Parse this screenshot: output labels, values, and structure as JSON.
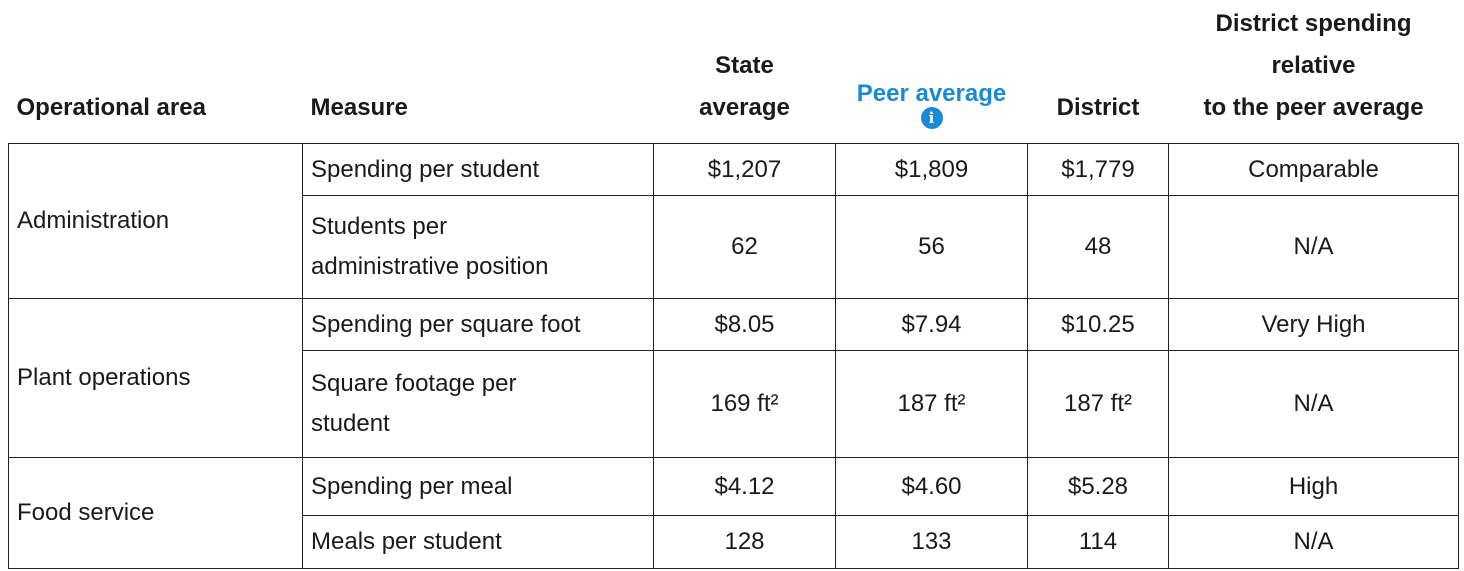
{
  "table": {
    "headers": [
      [
        "Operational area"
      ],
      [
        "Measure"
      ],
      [
        "State",
        "average"
      ],
      [
        "Peer average"
      ],
      [
        "District"
      ],
      [
        "District spending",
        "relative",
        "to the peer average"
      ]
    ],
    "groups": [
      {
        "area": "Administration",
        "rows": [
          [
            [
              "Spending per student"
            ],
            "$1,207",
            "$1,809",
            "$1,779",
            "Comparable"
          ],
          [
            [
              "Students per",
              "administrative position"
            ],
            "62",
            "56",
            "48",
            "N/A"
          ]
        ]
      },
      {
        "area": "Plant operations",
        "rows": [
          [
            [
              "Spending per square foot"
            ],
            "$8.05",
            "$7.94",
            "$10.25",
            "Very High"
          ],
          [
            [
              "Square footage per",
              "student"
            ],
            "169 ft²",
            "187 ft²",
            "187 ft²",
            "N/A"
          ]
        ]
      },
      {
        "area": "Food service",
        "rows": [
          [
            [
              "Spending per meal"
            ],
            "$4.12",
            "$4.60",
            "$5.28",
            "High"
          ],
          [
            [
              "Meals per student"
            ],
            "128",
            "133",
            "114",
            "N/A"
          ]
        ]
      }
    ]
  }
}
